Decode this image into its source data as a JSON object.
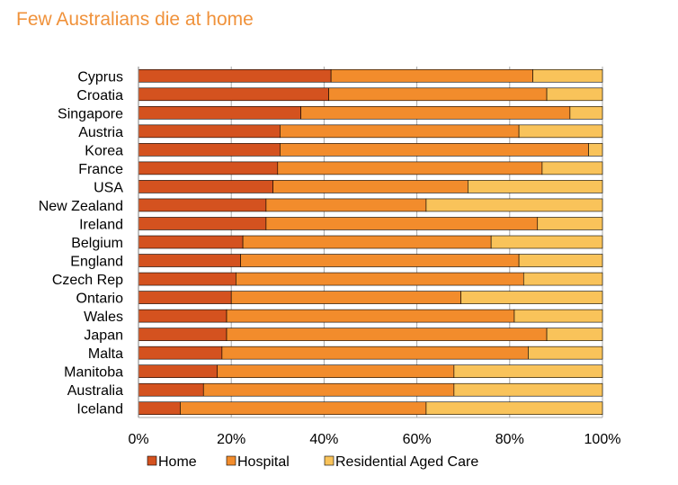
{
  "chart_data": {
    "type": "bar",
    "orientation": "horizontal",
    "stacked": true,
    "title": "Few Australians die at home",
    "xlabel": "",
    "ylabel": "",
    "xlim": [
      0,
      100
    ],
    "x_ticks": [
      "0%",
      "20%",
      "40%",
      "60%",
      "80%",
      "100%"
    ],
    "grid": true,
    "legend_position": "bottom",
    "categories": [
      "Cyprus",
      "Croatia",
      "Singapore",
      "Austria",
      "Korea",
      "France",
      "USA",
      "New Zealand",
      "Ireland",
      "Belgium",
      "England",
      "Czech Rep",
      "Ontario",
      "Wales",
      "Japan",
      "Malta",
      "Manitoba",
      "Australia",
      "Iceland"
    ],
    "series": [
      {
        "name": "Home",
        "color": "#d4521f",
        "values": [
          41.5,
          41,
          35,
          30.5,
          30.5,
          30,
          29,
          27.5,
          27.5,
          22.5,
          22,
          21,
          20,
          19,
          19,
          18,
          17,
          14,
          9
        ]
      },
      {
        "name": "Hospital",
        "color": "#f28c2c",
        "values": [
          43.5,
          47,
          58,
          51.5,
          66.5,
          57,
          42,
          34.5,
          58.5,
          53.5,
          60,
          62,
          49.5,
          62,
          69,
          66,
          51,
          54,
          53
        ]
      },
      {
        "name": "Residential Aged Care",
        "color": "#f9c35a",
        "values": [
          15,
          12,
          7,
          18,
          3,
          13,
          29,
          38,
          14,
          24,
          18,
          17,
          30.5,
          19,
          12,
          16,
          32,
          32,
          38
        ]
      }
    ]
  }
}
